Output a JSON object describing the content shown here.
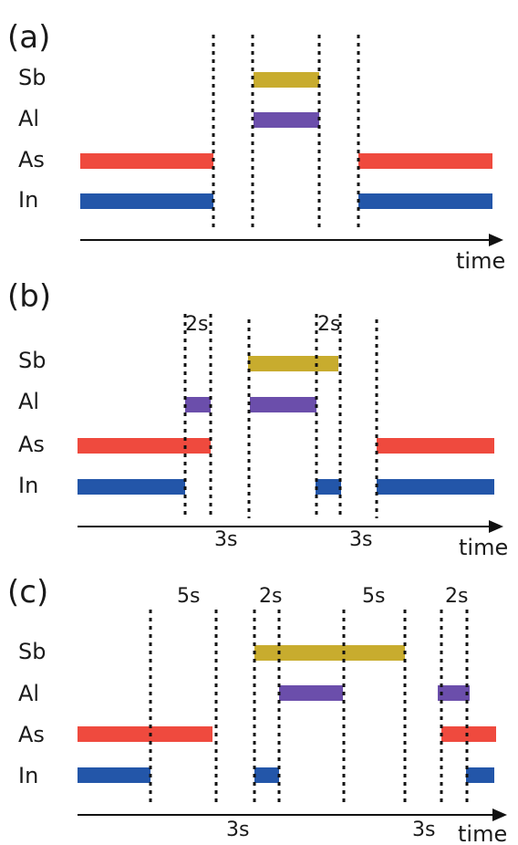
{
  "colors": {
    "Sb": "#c8ac2e",
    "Al": "#6b4eab",
    "As": "#ef4a3e",
    "In": "#2356a9"
  },
  "rows": [
    "Sb",
    "Al",
    "As",
    "In"
  ],
  "panels": [
    {
      "label": "(a)",
      "time_label": "time",
      "top_annotations": [],
      "bottom_annotations": []
    },
    {
      "label": "(b)",
      "time_label": "time",
      "top_annotations": [
        "2s",
        "2s"
      ],
      "bottom_annotations": [
        "3s",
        "3s"
      ]
    },
    {
      "label": "(c)",
      "time_label": "time",
      "top_annotations": [
        "5s",
        "2s",
        "5s",
        "2s"
      ],
      "bottom_annotations": [
        "3s",
        "3s"
      ]
    }
  ]
}
